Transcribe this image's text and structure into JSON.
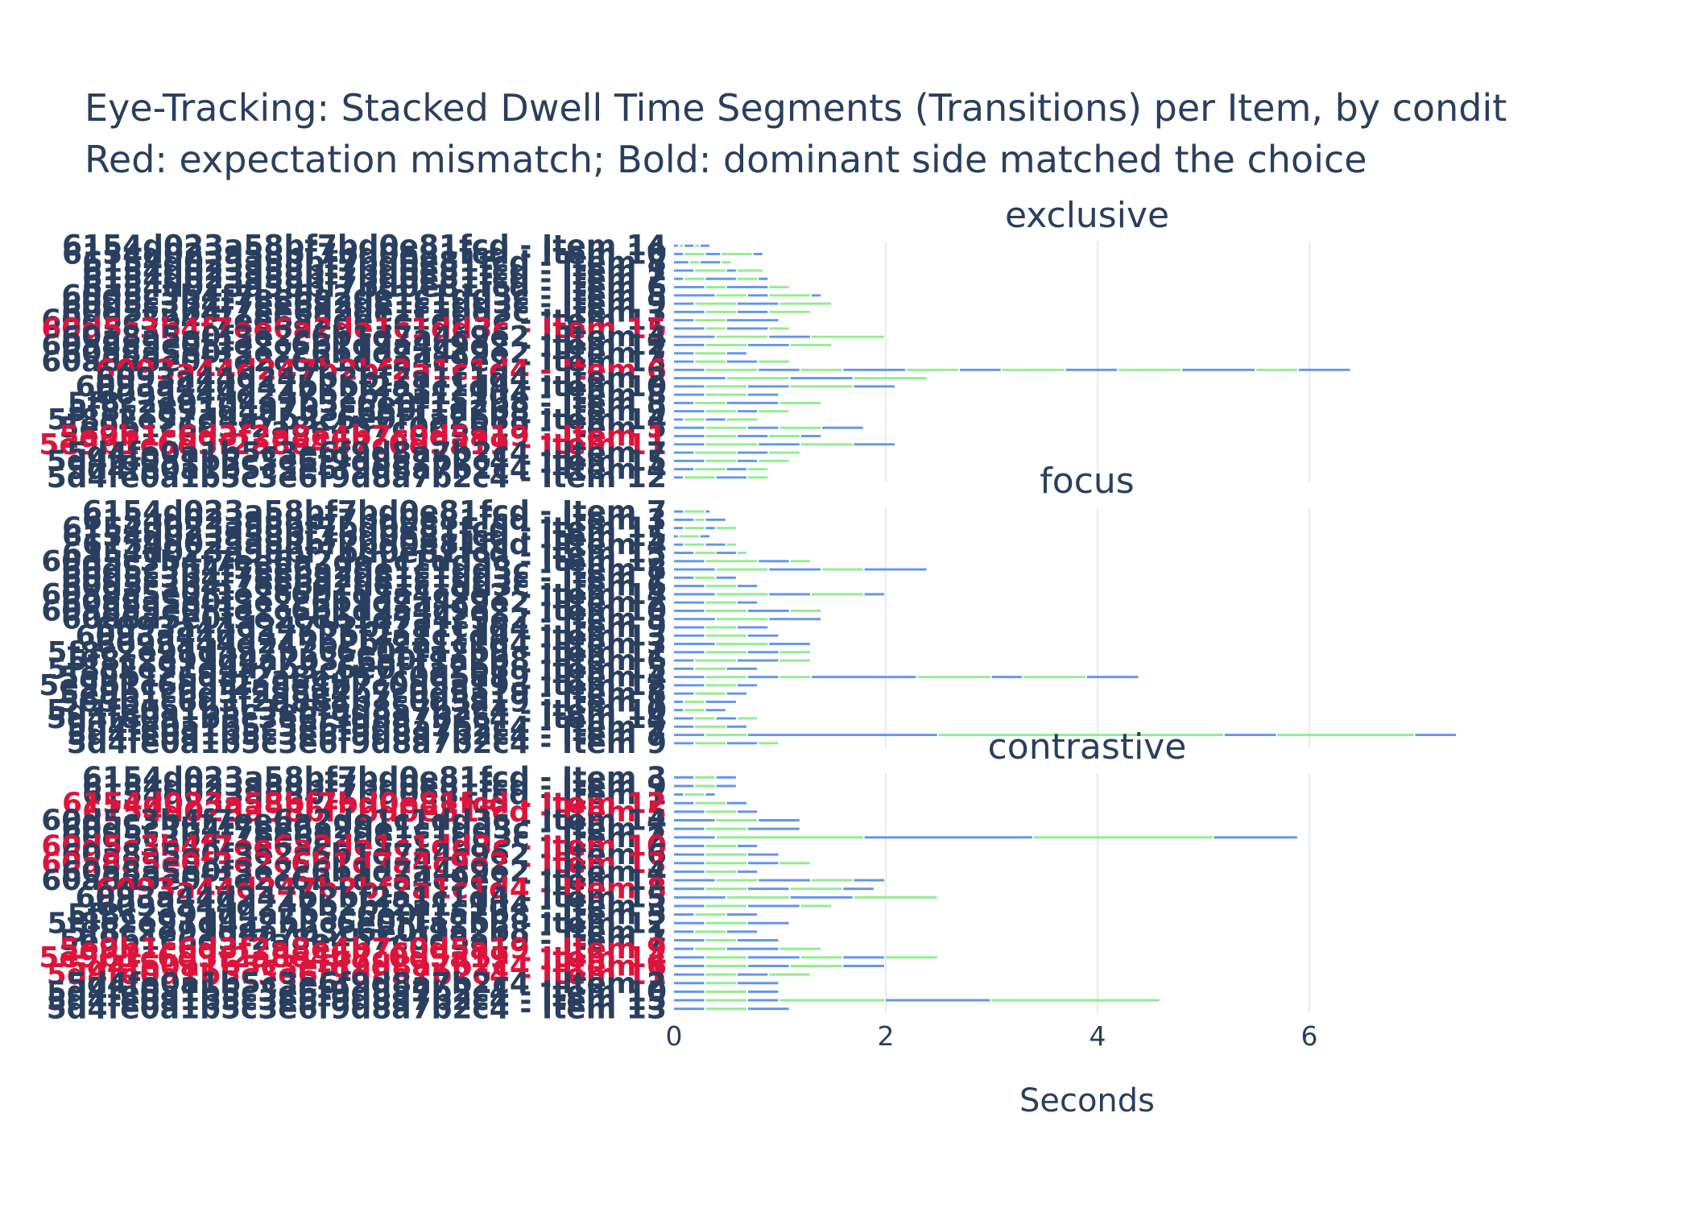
{
  "chart_data": {
    "type": "bar",
    "orientation": "horizontal",
    "stacked": true,
    "title": "Eye-Tracking: Stacked Dwell Time Segments (Transitions) per Item, by condit",
    "subtitle": "Red: expectation mismatch; Bold: dominant side matched the choice",
    "xlabel": "Seconds",
    "xlim": [
      0,
      7.5
    ],
    "xticks": [
      0,
      2,
      4,
      6
    ],
    "grid": true,
    "colors": {
      "left": "#6495ed",
      "right": "#90ee90",
      "mismatch": "#dc143c",
      "label": "#2a3f5f"
    },
    "facets": [
      {
        "name": "exclusive",
        "rows": [
          {
            "label": "6154d023a58bf7bd0e81fcd - Item 14",
            "segments": [
              0.05,
              0.05,
              0.1,
              0.05,
              0.1
            ]
          },
          {
            "label": "6154d023a58bf7bd0e81fcd - Item 10",
            "segments": [
              0.1,
              0.2,
              0.15,
              0.3,
              0.1
            ]
          },
          {
            "label": "6154d023a58bf7bd0e81fcd - Item 8",
            "segments": [
              0.15,
              0.1,
              0.2,
              0.1
            ]
          },
          {
            "label": "6154d023a58bf7bd0e81fcd - Item 1",
            "segments": [
              0.2,
              0.3,
              0.1,
              0.25
            ]
          },
          {
            "label": "6154d023a58bf7bd0e81fcd - Item 2",
            "segments": [
              0.1,
              0.2,
              0.3,
              0.2,
              0.1
            ]
          },
          {
            "label": "6154d023a58bf7bd0e81fcd - Item 6",
            "segments": [
              0.3,
              0.2,
              0.4,
              0.2
            ]
          },
          {
            "label": "60d5c3b4f7ee6a2de1c1dd3c - Item 5",
            "segments": [
              0.4,
              0.3,
              0.2,
              0.4,
              0.1
            ]
          },
          {
            "label": "60d5c3b4f7ee6a2de1c1dd3c - Item 9",
            "segments": [
              0.2,
              0.4,
              0.4,
              0.5
            ]
          },
          {
            "label": "60d5c3b4f7ee6a2de1c1dd3c - Item 3",
            "segments": [
              0.3,
              0.3,
              0.3,
              0.4
            ]
          },
          {
            "label": "60d5c3b4f7ee6a2de1c1dd3c - Item 11",
            "segments": [
              0.2,
              0.3,
              0.5
            ]
          },
          {
            "label": "60d5c3b4f7ee6a2de1c1dd3c - Item 15",
            "mismatch": true,
            "segments": [
              0.3,
              0.2,
              0.4,
              0.2
            ]
          },
          {
            "label": "60a8a5e0f3e2c6b1d7a4c9e2 - Item 4",
            "segments": [
              0.4,
              0.5,
              0.4,
              0.7
            ]
          },
          {
            "label": "60a8a5e0f3e2c6b1d7a4c9e2 - Item 12",
            "segments": [
              0.3,
              0.4,
              0.4,
              0.4
            ]
          },
          {
            "label": "60a8a5e0f3e2c6b1d7a4c9e2 - Item 7",
            "segments": [
              0.2,
              0.3,
              0.2
            ]
          },
          {
            "label": "60a8a5e0f3e2c6b1d7a4c9e2 - Item 13",
            "segments": [
              0.2,
              0.3,
              0.3,
              0.3
            ]
          },
          {
            "label": "6093a44d247b2bf2a1c1d4 - Item 6",
            "mismatch": true,
            "bold": true,
            "segments": [
              0.3,
              0.5,
              0.4,
              0.4,
              0.6,
              0.5,
              0.4,
              0.6,
              0.5,
              0.6,
              0.7,
              0.4,
              0.5
            ]
          },
          {
            "label": "6093a44d247b2bf2a1c1d4 - Item 2",
            "segments": [
              0.5,
              0.6,
              0.6,
              0.7
            ]
          },
          {
            "label": "6093a44d247b2bf2a1c1d4 - Item 10",
            "segments": [
              0.3,
              0.4,
              0.4,
              0.6,
              0.4
            ]
          },
          {
            "label": "6093a44d247b2bf2a1c1d4 - Item 8",
            "segments": [
              0.3,
              0.4,
              0.3
            ]
          },
          {
            "label": "5f8c2e91d4a7b3c6e0f1a2b8 - Item 3",
            "segments": [
              0.2,
              0.3,
              0.5,
              0.4
            ]
          },
          {
            "label": "5f8c2e91d4a7b3c6e0f1a2b8 - Item 9",
            "segments": [
              0.3,
              0.3,
              0.2,
              0.3
            ]
          },
          {
            "label": "5f8c2e91d4a7b3c6e0f1a2b8 - Item 14",
            "segments": [
              0.1,
              0.2,
              0.2,
              0.3
            ]
          },
          {
            "label": "5e9b1c6d3f2a8e4b7c0d5a19 - Item 5",
            "segments": [
              0.3,
              0.4,
              0.3,
              0.4,
              0.4
            ]
          },
          {
            "label": "5e9b1c6d3f2a8e4b7c0d5a19 - Item 1",
            "mismatch": true,
            "segments": [
              0.3,
              0.3,
              0.3,
              0.3,
              0.2
            ]
          },
          {
            "label": "5e9b1c6d3f2a8e4b7c0d5a19 - Item 11",
            "mismatch": true,
            "bold": true,
            "segments": [
              0.3,
              0.5,
              0.4,
              0.5,
              0.4
            ]
          },
          {
            "label": "5d4fe0a1b5c3e6f9d8a7b2c4 - Item 7",
            "segments": [
              0.2,
              0.4,
              0.3,
              0.3
            ]
          },
          {
            "label": "5d4fe0a1b5c3e6f9d8a7b2c4 - Item 15",
            "segments": [
              0.3,
              0.3,
              0.2,
              0.3
            ]
          },
          {
            "label": "5d4fe0a1b5c3e6f9d8a7b2c4 - Item 4",
            "segments": [
              0.2,
              0.3,
              0.2,
              0.2
            ]
          },
          {
            "label": "5d4fe0a1b5c3e6f9d8a7b2c4 - Item 12",
            "segments": [
              0.1,
              0.3,
              0.3,
              0.2
            ]
          }
        ]
      },
      {
        "name": "focus",
        "rows": [
          {
            "label": "6154d023a58bf7bd0e81fcd - Item 7",
            "segments": [
              0.1,
              0.2,
              0.05
            ]
          },
          {
            "label": "6154d023a58bf7bd0e81fcd - Item 3",
            "segments": [
              0.2,
              0.1,
              0.2
            ]
          },
          {
            "label": "6154d023a58bf7bd0e81fcd - Item 11",
            "segments": [
              0.1,
              0.2,
              0.1,
              0.2
            ]
          },
          {
            "label": "6154d023a58bf7bd0e81fcd - Item 15",
            "segments": [
              0.05,
              0.2,
              0.1
            ]
          },
          {
            "label": "6154d023a58bf7bd0e81fcd - Item 4",
            "segments": [
              0.1,
              0.2,
              0.2,
              0.1
            ]
          },
          {
            "label": "6154d023a58bf7bd0e81fcd - Item 13",
            "segments": [
              0.2,
              0.2,
              0.2,
              0.1
            ]
          },
          {
            "label": "60d5c3b4f7ee6a2de1c1dd3c - Item 12",
            "segments": [
              0.3,
              0.5,
              0.3,
              0.2
            ]
          },
          {
            "label": "60d5c3b4f7ee6a2de1c1dd3c - Item 8",
            "segments": [
              0.4,
              0.5,
              0.5,
              0.4,
              0.6
            ]
          },
          {
            "label": "60d5c3b4f7ee6a2de1c1dd3c - Item 1",
            "segments": [
              0.2,
              0.2,
              0.2
            ]
          },
          {
            "label": "60d5c3b4f7ee6a2de1c1dd3c - Item 6",
            "segments": [
              0.3,
              0.3,
              0.2
            ]
          },
          {
            "label": "60a8a5e0f3e2c6b1d7a4c9e2 - Item 14",
            "segments": [
              0.4,
              0.5,
              0.4,
              0.5,
              0.2
            ]
          },
          {
            "label": "60a8a5e0f3e2c6b1d7a4c9e2 - Item 2",
            "segments": [
              0.3,
              0.3,
              0.2
            ]
          },
          {
            "label": "60a8a5e0f3e2c6b1d7a4c9e2 - Item 10",
            "segments": [
              0.3,
              0.4,
              0.4,
              0.3
            ]
          },
          {
            "label": "60a8a5e0f3e2c6b1d7a4c9e2 - Item 5",
            "segments": [
              0.4,
              0.5,
              0.5
            ]
          },
          {
            "label": "6093a44d247b2bf2a1c1d4 - Item 9",
            "segments": [
              0.3,
              0.3,
              0.3
            ]
          },
          {
            "label": "6093a44d247b2bf2a1c1d4 - Item 13",
            "segments": [
              0.3,
              0.4,
              0.3
            ]
          },
          {
            "label": "6093a44d247b2bf2a1c1d4 - Item 3",
            "segments": [
              0.4,
              0.5,
              0.4
            ]
          },
          {
            "label": "5f8c2e91d4a7b3c6e0f1a2b8 - Item 11",
            "segments": [
              0.3,
              0.4,
              0.3,
              0.3
            ]
          },
          {
            "label": "5f8c2e91d4a7b3c6e0f1a2b8 - Item 6",
            "segments": [
              0.2,
              0.4,
              0.4,
              0.3
            ]
          },
          {
            "label": "5f8c2e91d4a7b3c6e0f1a2b8 - Item 15",
            "segments": [
              0.2,
              0.3,
              0.3
            ]
          },
          {
            "label": "5e9b1c6d3f2a8e4b7c0d5a19 - Item 4",
            "segments": [
              0.3,
              0.4,
              0.3,
              0.3,
              1.0,
              0.7,
              0.3,
              0.6,
              0.5
            ]
          },
          {
            "label": "5e9b1c6d3f2a8e4b7c0d5a19 - Item 12",
            "segments": [
              0.3,
              0.3,
              0.2
            ]
          },
          {
            "label": "5e9b1c6d3f2a8e4b7c0d5a19 - Item 8",
            "segments": [
              0.2,
              0.3,
              0.2
            ]
          },
          {
            "label": "5e9b1c6d3f2a8e4b7c0d5a19 - Item 1",
            "segments": [
              0.1,
              0.2,
              0.3
            ]
          },
          {
            "label": "5d4fe0a1b5c3e6f9d8a7b2c4 - Item 10",
            "segments": [
              0.1,
              0.2,
              0.2
            ]
          },
          {
            "label": "5d4fe0a1b5c3e6f9d8a7b2c4 - Item 14",
            "segments": [
              0.2,
              0.2,
              0.2,
              0.2
            ]
          },
          {
            "label": "5d4fe0a1b5c3e6f9d8a7b2c4 - Item 2",
            "segments": [
              0.2,
              0.3,
              0.2
            ]
          },
          {
            "label": "5d4fe0a1b5c3e6f9d8a7b2c4 - Item 7",
            "segments": [
              0.3,
              0.4,
              1.8,
              2.7,
              0.5,
              1.3,
              0.4
            ]
          },
          {
            "label": "5d4fe0a1b5c3e6f9d8a7b2c4 - Item 9",
            "segments": [
              0.2,
              0.3,
              0.3,
              0.2
            ]
          }
        ]
      },
      {
        "name": "contrastive",
        "rows": [
          {
            "label": "6154d023a58bf7bd0e81fcd - Item 3",
            "segments": [
              0.2,
              0.2,
              0.2
            ]
          },
          {
            "label": "6154d023a58bf7bd0e81fcd - Item 9",
            "segments": [
              0.2,
              0.2,
              0.2
            ]
          },
          {
            "label": "6154d023a58bf7bd0e81fcd - Item 1",
            "segments": [
              0.1,
              0.2,
              0.1
            ]
          },
          {
            "label": "6154d023a58bf7bd0e81fcd - Item 12",
            "mismatch": true,
            "bold": true,
            "segments": [
              0.2,
              0.3,
              0.2
            ]
          },
          {
            "label": "6154d023a58bf7bd0e81fcd - Item 5",
            "mismatch": true,
            "bold": true,
            "segments": [
              0.3,
              0.3,
              0.2
            ]
          },
          {
            "label": "60d5c3b4f7ee6a2de1c1dd3c - Item 14",
            "segments": [
              0.4,
              0.4,
              0.4
            ]
          },
          {
            "label": "60d5c3b4f7ee6a2de1c1dd3c - Item 7",
            "segments": [
              0.3,
              0.4,
              0.5
            ]
          },
          {
            "label": "60d5c3b4f7ee6a2de1c1dd3c - Item 2",
            "segments": [
              0.4,
              1.4,
              1.6,
              1.7,
              0.8
            ]
          },
          {
            "label": "60d5c3b4f7ee6a2de1c1dd3c - Item 10",
            "mismatch": true,
            "segments": [
              0.3,
              0.3,
              0.2
            ]
          },
          {
            "label": "60a8a5e0f3e2c6b1d7a4c9e2 - Item 6",
            "segments": [
              0.3,
              0.4,
              0.3
            ]
          },
          {
            "label": "60a8a5e0f3e2c6b1d7a4c9e2 - Item 13",
            "mismatch": true,
            "segments": [
              0.3,
              0.4,
              0.3,
              0.3
            ]
          },
          {
            "label": "60a8a5e0f3e2c6b1d7a4c9e2 - Item 4",
            "segments": [
              0.3,
              0.3,
              0.2
            ]
          },
          {
            "label": "60a8a5e0f3e2c6b1d7a4c9e2 - Item 11",
            "segments": [
              0.4,
              0.4,
              0.5,
              0.4,
              0.3
            ]
          },
          {
            "label": "6093a44d247b2bf2a1c1d4 - Item 8",
            "mismatch": true,
            "bold": true,
            "segments": [
              0.3,
              0.4,
              0.4,
              0.5,
              0.3
            ]
          },
          {
            "label": "6093a44d247b2bf2a1c1d4 - Item 15",
            "segments": [
              0.5,
              0.6,
              0.6,
              0.8
            ]
          },
          {
            "label": "6093a44d247b2bf2a1c1d4 - Item 3",
            "segments": [
              0.3,
              0.4,
              0.5,
              0.3
            ]
          },
          {
            "label": "5f8c2e91d4a7b3c6e0f1a2b8 - Item 5",
            "segments": [
              0.2,
              0.3,
              0.3
            ]
          },
          {
            "label": "5f8c2e91d4a7b3c6e0f1a2b8 - Item 12",
            "segments": [
              0.3,
              0.4,
              0.4
            ]
          },
          {
            "label": "5f8c2e91d4a7b3c6e0f1a2b8 - Item 1",
            "segments": [
              0.2,
              0.3,
              0.3
            ]
          },
          {
            "label": "5e9b1c6d3f2a8e4b7c0d5a19 - Item 7",
            "segments": [
              0.3,
              0.3,
              0.4
            ]
          },
          {
            "label": "5e9b1c6d3f2a8e4b7c0d5a19 - Item 9",
            "mismatch": true,
            "bold": true,
            "segments": [
              0.2,
              0.3,
              0.5,
              0.4
            ]
          },
          {
            "label": "5e9b1c6d3f2a8e4b7c0d5a19 - Item 14",
            "mismatch": true,
            "bold": true,
            "segments": [
              0.3,
              0.4,
              0.5,
              0.4,
              0.4,
              0.5
            ]
          },
          {
            "label": "5d4fe0a1b5c3e6f9d8a7b2c4 - Item 6",
            "mismatch": true,
            "bold": true,
            "segments": [
              0.3,
              0.4,
              0.4,
              0.5,
              0.4
            ]
          },
          {
            "label": "5d4fe0a1b5c3e6f9d8a7b2c4 - Item 11",
            "mismatch": true,
            "bold": true,
            "segments": [
              0.3,
              0.3,
              0.3,
              0.4
            ]
          },
          {
            "label": "5d4fe0a1b5c3e6f9d8a7b2c4 - Item 2",
            "segments": [
              0.3,
              0.3,
              0.4
            ]
          },
          {
            "label": "5d4fe0a1b5c3e6f9d8a7b2c4 - Item 10",
            "segments": [
              0.3,
              0.4,
              0.3
            ]
          },
          {
            "label": "5d4fe0a1b5c3e6f9d8a7b2c4 - Item 15",
            "segments": [
              0.3,
              0.4,
              0.3,
              1.0,
              1.0,
              1.6
            ]
          },
          {
            "label": "5d4fe0a1b5c3e6f9d8a7b2c4 - Item 13",
            "segments": [
              0.3,
              0.4,
              0.4
            ]
          }
        ]
      }
    ]
  }
}
